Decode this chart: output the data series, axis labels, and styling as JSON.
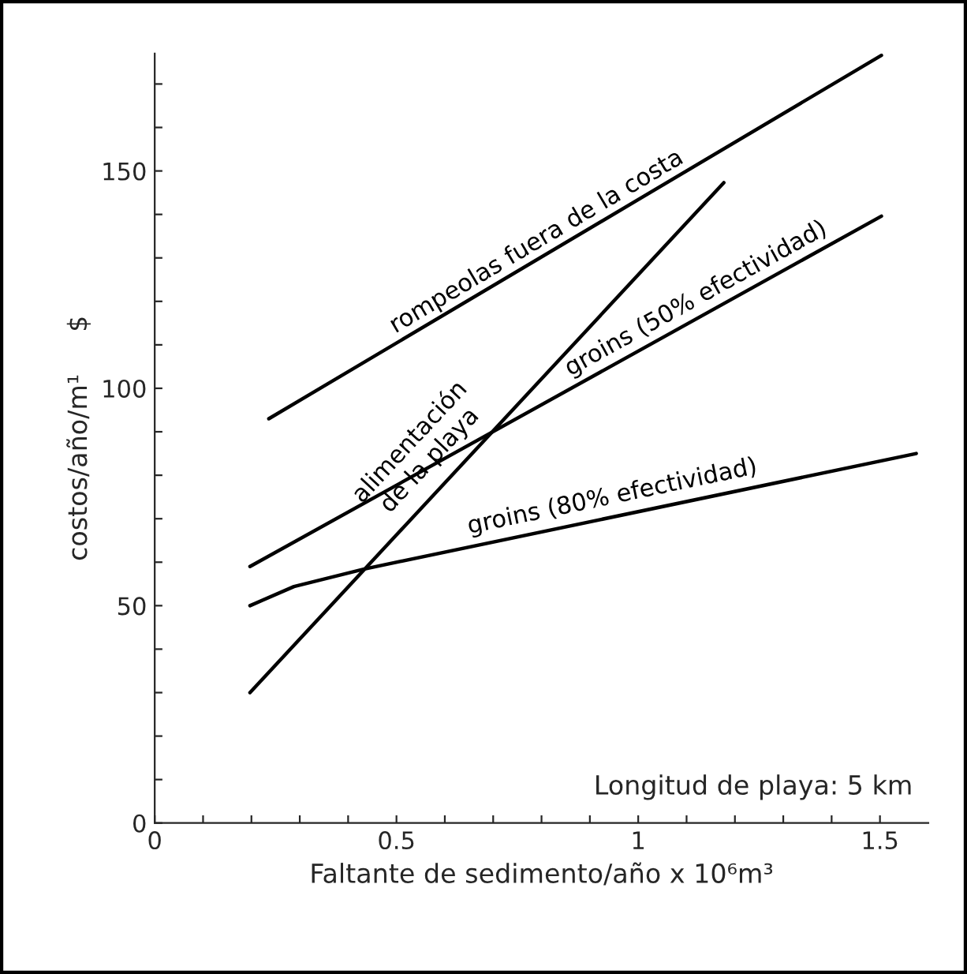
{
  "chart_data": {
    "type": "line",
    "xlabel": "Faltante de sedimento/año x 10⁶m³",
    "ylabel": "costos/año/m¹     $",
    "xlim": [
      0,
      1.6
    ],
    "ylim": [
      0,
      177
    ],
    "xticks": [
      0,
      {
        "value": 0.1,
        "label": null
      },
      {
        "value": 0.2,
        "label": null
      },
      {
        "value": 0.3,
        "label": null
      },
      {
        "value": 0.4,
        "label": null
      },
      0.5,
      {
        "value": 0.6,
        "label": null
      },
      {
        "value": 0.7,
        "label": null
      },
      {
        "value": 0.8,
        "label": null
      },
      {
        "value": 0.9,
        "label": null
      },
      1,
      {
        "value": 1.1,
        "label": null
      },
      {
        "value": 1.2,
        "label": null
      },
      {
        "value": 1.3,
        "label": null
      },
      {
        "value": 1.4,
        "label": null
      },
      1.5
    ],
    "yticks": [
      0,
      {
        "value": 10,
        "label": null
      },
      {
        "value": 20,
        "label": null
      },
      {
        "value": 30,
        "label": null
      },
      {
        "value": 40,
        "label": null
      },
      50,
      {
        "value": 60,
        "label": null
      },
      {
        "value": 70,
        "label": null
      },
      {
        "value": 80,
        "label": null
      },
      {
        "value": 90,
        "label": null
      },
      100,
      {
        "value": 110,
        "label": null
      },
      {
        "value": 120,
        "label": null
      },
      {
        "value": 130,
        "label": null
      },
      {
        "value": 140,
        "label": null
      },
      150,
      {
        "value": 160,
        "label": null
      },
      {
        "value": 170,
        "label": null
      }
    ],
    "grid": false,
    "legend": false,
    "marker": "none",
    "line_style": "solid",
    "series": [
      {
        "name": "rompeolas fuera de la costa",
        "color": "#000000",
        "x": [
          0.236,
          1.503
        ],
        "values": [
          93,
          176.6
        ]
      },
      {
        "name": "alimentación\nde la playa",
        "color": "#000000",
        "x": [
          0.197,
          1.177
        ],
        "values": [
          30,
          147.3
        ]
      },
      {
        "name": "groins (50% efectividad)",
        "color": "#000000",
        "x": [
          0.197,
          1.503
        ],
        "values": [
          59,
          139.6
        ]
      },
      {
        "name": "groins (80% efectividad)",
        "color": "#000000",
        "x": [
          0.197,
          0.288,
          0.432,
          1.575
        ],
        "values": [
          50,
          54.4,
          58.4,
          85
        ]
      }
    ],
    "annotations": [
      "Longitud de playa: 5 km"
    ]
  }
}
